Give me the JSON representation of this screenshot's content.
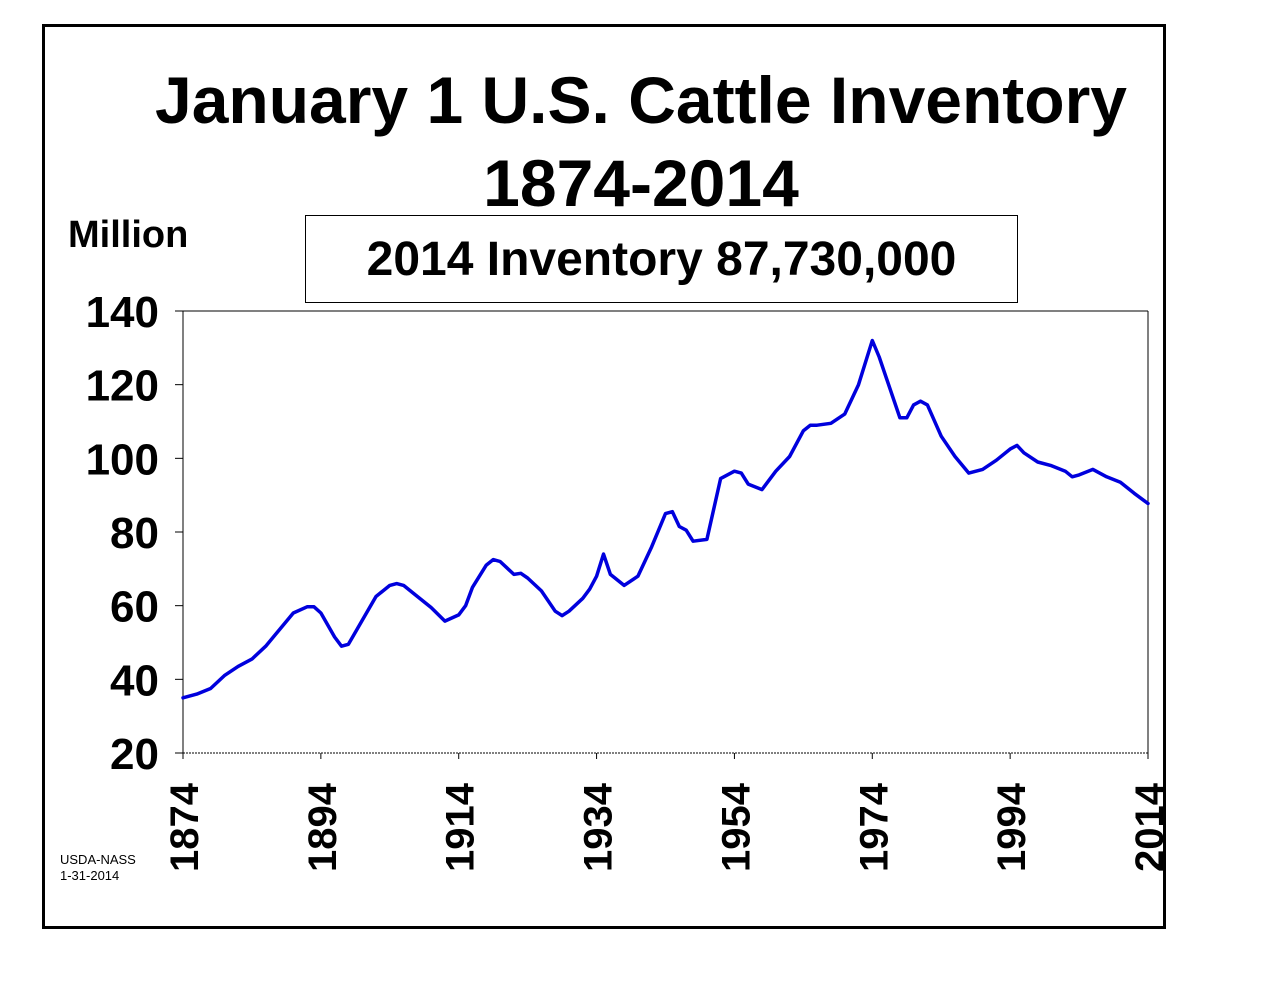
{
  "chart_data": {
    "type": "line",
    "title": "January 1 U.S. Cattle Inventory",
    "subtitle": "1874-2014",
    "annotation": "2014 Inventory 87,730,000",
    "ylabel": "Million",
    "xlabel": "",
    "source": [
      "USDA-NASS",
      "1-31-2014"
    ],
    "xlim": [
      1874,
      2014
    ],
    "ylim": [
      20,
      140
    ],
    "yticks": [
      "20",
      "40",
      "60",
      "80",
      "100",
      "120",
      "140"
    ],
    "xticks": [
      "1874",
      "1894",
      "1914",
      "1934",
      "1954",
      "1974",
      "1994",
      "2014"
    ],
    "grid": false,
    "legend": "none",
    "line_color": "#0000dd",
    "x": [
      1874,
      1876,
      1878,
      1880,
      1882,
      1884,
      1886,
      1888,
      1890,
      1892,
      1893,
      1894,
      1896,
      1897,
      1898,
      1900,
      1902,
      1904,
      1905,
      1906,
      1908,
      1910,
      1912,
      1914,
      1915,
      1916,
      1918,
      1919,
      1920,
      1922,
      1923,
      1924,
      1926,
      1928,
      1929,
      1930,
      1932,
      1933,
      1934,
      1935,
      1936,
      1938,
      1940,
      1942,
      1944,
      1945,
      1946,
      1947,
      1948,
      1950,
      1952,
      1954,
      1955,
      1956,
      1958,
      1960,
      1962,
      1964,
      1965,
      1966,
      1968,
      1970,
      1972,
      1974,
      1975,
      1976,
      1978,
      1979,
      1980,
      1981,
      1982,
      1984,
      1986,
      1988,
      1990,
      1992,
      1994,
      1995,
      1996,
      1998,
      2000,
      2002,
      2003,
      2004,
      2006,
      2008,
      2010,
      2012,
      2014
    ],
    "values": [
      35.0,
      36.0,
      37.5,
      41.0,
      43.5,
      45.5,
      49.0,
      53.5,
      58.0,
      59.7,
      59.7,
      58.0,
      51.5,
      49.0,
      49.5,
      56.0,
      62.5,
      65.5,
      66.0,
      65.5,
      62.5,
      59.5,
      55.8,
      57.5,
      60.0,
      65.0,
      71.0,
      72.5,
      72.0,
      68.5,
      68.8,
      67.5,
      64.0,
      58.5,
      57.3,
      58.5,
      62.0,
      64.5,
      68.0,
      74.0,
      68.5,
      65.5,
      68.0,
      76.0,
      85.0,
      85.5,
      81.5,
      80.5,
      77.5,
      78.0,
      94.5,
      96.5,
      96.0,
      93.0,
      91.5,
      96.5,
      100.5,
      107.5,
      109.0,
      109.0,
      109.5,
      112.0,
      120.0,
      132.0,
      127.5,
      122.0,
      111.0,
      111.0,
      114.5,
      115.5,
      114.5,
      106.0,
      100.5,
      96.0,
      97.0,
      99.5,
      102.5,
      103.5,
      101.5,
      99.0,
      98.0,
      96.5,
      95.0,
      95.5,
      97.0,
      95.0,
      93.5,
      90.5,
      87.73
    ]
  }
}
